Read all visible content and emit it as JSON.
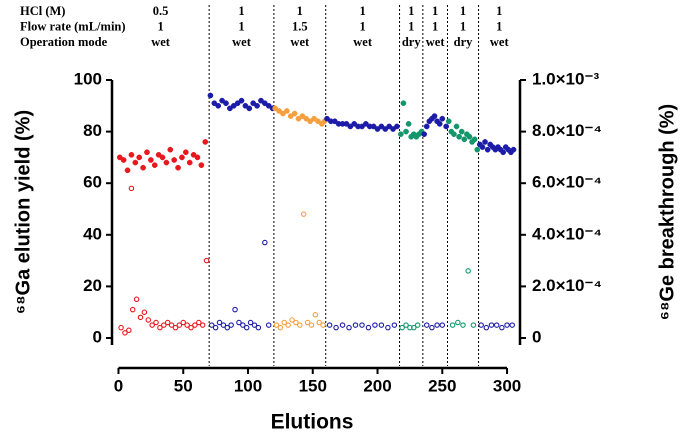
{
  "chart_data": {
    "type": "scatter",
    "xlabel": "Elutions",
    "ylabel": "⁶⁸Ga elution yield (%)",
    "y2label": "⁶⁸Ge breakthrough (%)",
    "xlim": [
      -5,
      310
    ],
    "xticks": [
      0,
      50,
      100,
      150,
      200,
      250,
      300
    ],
    "ylim": [
      0,
      100
    ],
    "yticks": [
      0,
      20,
      40,
      60,
      80,
      100
    ],
    "y2lim": [
      0,
      0.001
    ],
    "y2ticks": [
      0,
      {
        "value": 0.0002,
        "label": "2.0×10⁻⁴"
      },
      {
        "value": 0.0004,
        "label": "4.0×10⁻⁴"
      },
      {
        "value": 0.0006,
        "label": "6.0×10⁻⁴"
      },
      {
        "value": 0.0008,
        "label": "8.0×10⁻⁴"
      },
      {
        "value": 0.001,
        "label": "1.0×10⁻³"
      }
    ],
    "boundaries": [
      70,
      120,
      160,
      217,
      235,
      254,
      278
    ],
    "conditions": [
      {
        "label": "HCl (M)",
        "values": [
          "0.5",
          "1",
          "1",
          "1",
          "1",
          "1",
          "1",
          "1"
        ]
      },
      {
        "label": "Flow rate (mL/min)",
        "values": [
          "1",
          "1",
          "1.5",
          "1",
          "1",
          "1",
          "1",
          "1"
        ]
      },
      {
        "label": "Operation mode",
        "values": [
          "wet",
          "wet",
          "wet",
          "wet",
          "dry",
          "wet",
          "dry",
          "wet"
        ]
      }
    ],
    "series": [
      {
        "color": "#e8191e",
        "marker": "filled",
        "x": [
          1,
          4,
          7,
          10,
          13,
          16,
          19,
          22,
          25,
          28,
          31,
          34,
          37,
          40,
          43,
          46,
          49,
          52,
          55,
          58,
          61,
          64,
          67
        ],
        "values": [
          70,
          69,
          65,
          71,
          68,
          70,
          66,
          72,
          69,
          67,
          71,
          70,
          68,
          73,
          69,
          66,
          70,
          72,
          68,
          71,
          70,
          67,
          76
        ]
      },
      {
        "color": "#1c1ca8",
        "marker": "filled",
        "x": [
          71,
          74,
          77,
          80,
          83,
          86,
          89,
          92,
          95,
          98,
          101,
          104,
          107,
          110,
          113,
          116,
          119
        ],
        "values": [
          94,
          91,
          90,
          92,
          91,
          89,
          90,
          91,
          92,
          90,
          89,
          91,
          90,
          92,
          91,
          90,
          89
        ]
      },
      {
        "color": "#f5a040",
        "marker": "filled",
        "x": [
          121,
          124,
          127,
          130,
          133,
          136,
          139,
          142,
          145,
          148,
          151,
          154,
          157,
          159
        ],
        "values": [
          89,
          88,
          87,
          88,
          86,
          87,
          85,
          86,
          85,
          84,
          85,
          84,
          83,
          84
        ]
      },
      {
        "color": "#1c1ca8",
        "marker": "filled",
        "x": [
          161,
          164,
          167,
          170,
          173,
          176,
          179,
          182,
          185,
          188,
          191,
          194,
          197,
          200,
          203,
          206,
          209,
          212,
          215
        ],
        "values": [
          85,
          84,
          84,
          83,
          83,
          83,
          82,
          83,
          82,
          82,
          83,
          82,
          82,
          81,
          82,
          81,
          82,
          81,
          82
        ]
      },
      {
        "color": "#13976a",
        "marker": "filled",
        "x": [
          218,
          220,
          222,
          224,
          226,
          228,
          230,
          232,
          234
        ],
        "values": [
          79,
          91,
          80,
          83,
          78,
          79,
          78,
          79,
          80
        ]
      },
      {
        "color": "#1c1ca8",
        "marker": "filled",
        "x": [
          236,
          238,
          240,
          242,
          244,
          246,
          248,
          250,
          253
        ],
        "values": [
          79,
          82,
          84,
          85,
          86,
          84,
          83,
          85,
          82
        ]
      },
      {
        "color": "#13976a",
        "marker": "filled",
        "x": [
          255,
          257,
          259,
          261,
          263,
          265,
          267,
          269,
          271,
          273,
          275,
          277
        ],
        "values": [
          84,
          80,
          79,
          82,
          78,
          80,
          77,
          79,
          78,
          76,
          77,
          73
        ]
      },
      {
        "color": "#1c1ca8",
        "marker": "filled",
        "x": [
          279,
          281,
          283,
          285,
          287,
          289,
          291,
          293,
          295,
          297,
          299,
          301,
          303,
          305
        ],
        "values": [
          75,
          74,
          76,
          73,
          75,
          74,
          73,
          74,
          73,
          72,
          74,
          73,
          72,
          73
        ]
      },
      {
        "color": "#e8191e",
        "marker": "open",
        "axis": "y2",
        "x": [
          2,
          5,
          8,
          10,
          11,
          14,
          17,
          20,
          23,
          26,
          29,
          32,
          35,
          38,
          41,
          44,
          47,
          50,
          53,
          56,
          59,
          62,
          65,
          68
        ],
        "values": [
          4e-05,
          2e-05,
          3e-05,
          0.00058,
          0.00011,
          0.00015,
          8e-05,
          0.0001,
          7e-05,
          5e-05,
          6e-05,
          4e-05,
          5e-05,
          6e-05,
          5e-05,
          4e-05,
          5e-05,
          6e-05,
          5e-05,
          4e-05,
          5e-05,
          6e-05,
          5e-05,
          0.0003
        ]
      },
      {
        "color": "#1c1ca8",
        "marker": "open",
        "axis": "y2",
        "x": [
          72,
          75,
          78,
          81,
          84,
          87,
          90,
          93,
          96,
          99,
          102,
          105,
          108,
          113,
          116
        ],
        "values": [
          5e-05,
          4e-05,
          6e-05,
          5e-05,
          4e-05,
          5e-05,
          0.00011,
          6e-05,
          5e-05,
          4e-05,
          6e-05,
          5e-05,
          4e-05,
          0.00037,
          5e-05
        ]
      },
      {
        "color": "#f5a040",
        "marker": "open",
        "axis": "y2",
        "x": [
          122,
          125,
          128,
          131,
          134,
          137,
          140,
          143,
          146,
          149,
          152,
          155,
          158
        ],
        "values": [
          5e-05,
          4e-05,
          6e-05,
          5e-05,
          7e-05,
          6e-05,
          5e-05,
          0.00048,
          6e-05,
          5e-05,
          9e-05,
          6e-05,
          5e-05
        ]
      },
      {
        "color": "#1c1ca8",
        "marker": "open",
        "axis": "y2",
        "x": [
          163,
          168,
          173,
          178,
          183,
          188,
          193,
          198,
          203,
          208,
          213
        ],
        "values": [
          5e-05,
          4e-05,
          5e-05,
          4e-05,
          5e-05,
          5e-05,
          4e-05,
          5e-05,
          5e-05,
          4e-05,
          5e-05
        ]
      },
      {
        "color": "#13976a",
        "marker": "open",
        "axis": "y2",
        "x": [
          219,
          222,
          225,
          228,
          231
        ],
        "values": [
          4e-05,
          5e-05,
          4e-05,
          4e-05,
          5e-05
        ]
      },
      {
        "color": "#1c1ca8",
        "marker": "open",
        "axis": "y2",
        "x": [
          238,
          242,
          246,
          250
        ],
        "values": [
          5e-05,
          4e-05,
          5e-05,
          5e-05
        ]
      },
      {
        "color": "#13976a",
        "marker": "open",
        "axis": "y2",
        "x": [
          258,
          262,
          266,
          270,
          274
        ],
        "values": [
          5e-05,
          6e-05,
          5e-05,
          0.00026,
          5e-05
        ]
      },
      {
        "color": "#1c1ca8",
        "marker": "open",
        "axis": "y2",
        "x": [
          280,
          284,
          288,
          292,
          296,
          300,
          304
        ],
        "values": [
          5e-05,
          4e-05,
          5e-05,
          5e-05,
          4e-05,
          5e-05,
          5e-05
        ]
      }
    ]
  }
}
